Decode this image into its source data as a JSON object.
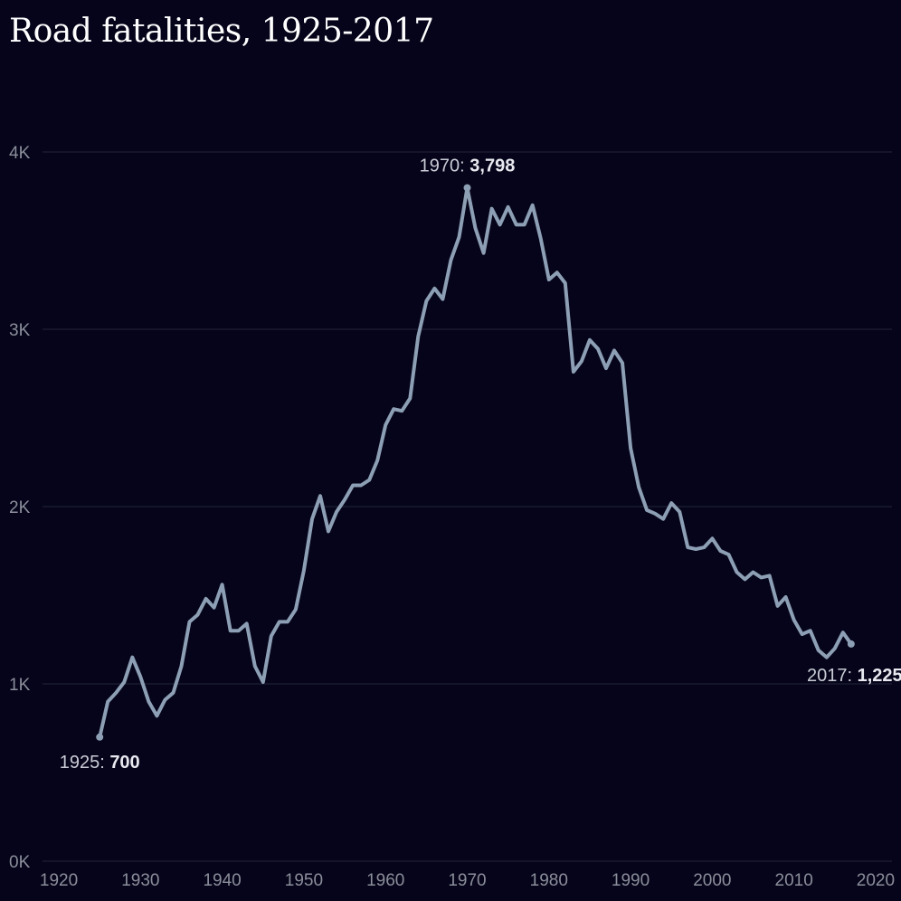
{
  "chart_data": {
    "type": "line",
    "title": "Road fatalities, 1925-2017",
    "xlabel": "",
    "ylabel": "",
    "xlim": [
      1918,
      2022
    ],
    "ylim": [
      0,
      4000
    ],
    "x_ticks": [
      {
        "value": 1920,
        "label": "1920"
      },
      {
        "value": 1930,
        "label": "1930"
      },
      {
        "value": 1940,
        "label": "1940"
      },
      {
        "value": 1950,
        "label": "1950"
      },
      {
        "value": 1960,
        "label": "1960"
      },
      {
        "value": 1970,
        "label": "1970"
      },
      {
        "value": 1980,
        "label": "1980"
      },
      {
        "value": 1990,
        "label": "1990"
      },
      {
        "value": 2000,
        "label": "2000"
      },
      {
        "value": 2010,
        "label": "2010"
      },
      {
        "value": 2020,
        "label": "2020"
      }
    ],
    "y_ticks": [
      {
        "value": 0,
        "label": "0K"
      },
      {
        "value": 1000,
        "label": "1K"
      },
      {
        "value": 2000,
        "label": "2K"
      },
      {
        "value": 3000,
        "label": "3K"
      },
      {
        "value": 4000,
        "label": "4K"
      }
    ],
    "grid": true,
    "line_color": "#8d9fb4",
    "background_color": "#05041a",
    "series": [
      {
        "x": [
          1925,
          1926,
          1927,
          1928,
          1929,
          1930,
          1931,
          1932,
          1933,
          1934,
          1935,
          1936,
          1937,
          1938,
          1939,
          1940,
          1941,
          1942,
          1943,
          1944,
          1945,
          1946,
          1947,
          1948,
          1949,
          1950,
          1951,
          1952,
          1953,
          1954,
          1955,
          1956,
          1957,
          1958,
          1959,
          1960,
          1961,
          1962,
          1963,
          1964,
          1965,
          1966,
          1967,
          1968,
          1969,
          1970,
          1971,
          1972,
          1973,
          1974,
          1975,
          1976,
          1977,
          1978,
          1979,
          1980,
          1981,
          1982,
          1983,
          1984,
          1985,
          1986,
          1987,
          1988,
          1989,
          1990,
          1991,
          1992,
          1993,
          1994,
          1995,
          1996,
          1997,
          1998,
          1999,
          2000,
          2001,
          2002,
          2003,
          2004,
          2005,
          2006,
          2007,
          2008,
          2009,
          2010,
          2011,
          2012,
          2013,
          2014,
          2015,
          2016,
          2017
        ],
        "y": [
          700,
          900,
          950,
          1010,
          1150,
          1040,
          900,
          820,
          910,
          950,
          1100,
          1350,
          1390,
          1480,
          1430,
          1560,
          1300,
          1300,
          1340,
          1100,
          1010,
          1270,
          1350,
          1350,
          1420,
          1640,
          1930,
          2060,
          1860,
          1970,
          2040,
          2120,
          2120,
          2150,
          2260,
          2460,
          2550,
          2540,
          2610,
          2960,
          3160,
          3230,
          3170,
          3390,
          3520,
          3798,
          3570,
          3430,
          3680,
          3590,
          3690,
          3590,
          3590,
          3700,
          3510,
          3280,
          3320,
          3260,
          2760,
          2820,
          2940,
          2890,
          2780,
          2880,
          2810,
          2330,
          2110,
          1980,
          1960,
          1930,
          2020,
          1970,
          1770,
          1760,
          1770,
          1820,
          1750,
          1730,
          1630,
          1590,
          1630,
          1600,
          1610,
          1440,
          1490,
          1360,
          1280,
          1300,
          1190,
          1150,
          1200,
          1290,
          1225
        ]
      }
    ],
    "annotations": [
      {
        "x": 1925,
        "y": 700,
        "label": "1925: ",
        "value": "700"
      },
      {
        "x": 1970,
        "y": 3798,
        "label": "1970: ",
        "value": "3,798"
      },
      {
        "x": 2017,
        "y": 1225,
        "label": "2017: ",
        "value": "1,225"
      }
    ]
  }
}
